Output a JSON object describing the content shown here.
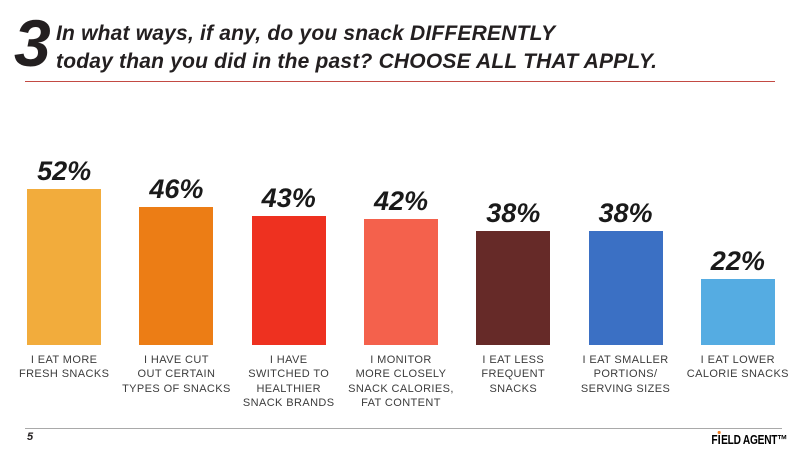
{
  "header": {
    "question_number": "3",
    "title_line1": "In what ways, if any, do you snack DIFFERENTLY",
    "title_line2": "today than you did in the past? CHOOSE ALL THAT APPLY.",
    "underline_color": "#c34a43"
  },
  "chart_data": {
    "type": "bar",
    "title": "In what ways, if any, do you snack DIFFERENTLY today than you did in the past? CHOOSE ALL THAT APPLY.",
    "categories": [
      "I EAT MORE\nFRESH SNACKS",
      "I HAVE CUT\nOUT CERTAIN\nTYPES OF SNACKS",
      "I HAVE\nSWITCHED TO\nHEALTHIER\nSNACK BRANDS",
      "I MONITOR\nMORE CLOSELY\nSNACK CALORIES,\nFAT CONTENT",
      "I EAT LESS\nFREQUENT\nSNACKS",
      "I EAT SMALLER\nPORTIONS/\nSERVING SIZES",
      "I EAT LOWER\nCALORIE SNACKS"
    ],
    "values": [
      52,
      46,
      43,
      42,
      38,
      38,
      22
    ],
    "value_labels": [
      "52%",
      "46%",
      "43%",
      "42%",
      "38%",
      "38%",
      "22%"
    ],
    "bar_colors": [
      "#f2ac3c",
      "#ec7d15",
      "#ee3120",
      "#f4614c",
      "#662a28",
      "#3b70c4",
      "#55ace2"
    ],
    "xlabel": "",
    "ylabel": "",
    "ylim": [
      0,
      60
    ],
    "grid": false,
    "legend": false
  },
  "footer": {
    "page_number": "5",
    "logo_left": "F",
    "logo_right": "ELD AGENT™",
    "logo_dot_color": "#f07d22"
  }
}
